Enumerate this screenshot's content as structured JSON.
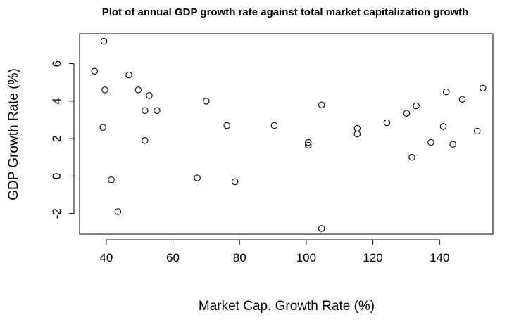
{
  "chart_data": {
    "type": "scatter",
    "title": "Plot of annual GDP growth rate against total market capitalization growth",
    "xlabel": "Market Cap. Growth Rate (%)",
    "ylabel": "GDP Growth Rate (%)",
    "xlim": [
      32,
      156
    ],
    "ylim": [
      -3.1,
      7.6
    ],
    "xticks": [
      40,
      60,
      80,
      100,
      120,
      140
    ],
    "yticks": [
      -2,
      0,
      2,
      4,
      6
    ],
    "grid": false,
    "legend": "none",
    "marker": "open-circle",
    "colors": {
      "points": "#000000",
      "axes": "#000000",
      "background": "#ffffff"
    },
    "points": [
      {
        "x": 36.5,
        "y": 5.6
      },
      {
        "x": 39.3,
        "y": 7.2
      },
      {
        "x": 39.6,
        "y": 4.6
      },
      {
        "x": 39.0,
        "y": 2.6
      },
      {
        "x": 41.5,
        "y": -0.2
      },
      {
        "x": 43.5,
        "y": -1.9
      },
      {
        "x": 46.8,
        "y": 5.4
      },
      {
        "x": 49.6,
        "y": 4.6
      },
      {
        "x": 51.6,
        "y": 3.5
      },
      {
        "x": 51.6,
        "y": 1.9
      },
      {
        "x": 52.9,
        "y": 4.3
      },
      {
        "x": 55.2,
        "y": 3.5
      },
      {
        "x": 67.3,
        "y": -0.1
      },
      {
        "x": 70.0,
        "y": 4.0
      },
      {
        "x": 76.2,
        "y": 2.7
      },
      {
        "x": 78.6,
        "y": -0.3
      },
      {
        "x": 90.4,
        "y": 2.7
      },
      {
        "x": 100.6,
        "y": 1.8
      },
      {
        "x": 100.6,
        "y": 1.65
      },
      {
        "x": 104.6,
        "y": 3.8
      },
      {
        "x": 104.6,
        "y": -2.8
      },
      {
        "x": 115.3,
        "y": 2.55
      },
      {
        "x": 115.3,
        "y": 2.25
      },
      {
        "x": 124.2,
        "y": 2.85
      },
      {
        "x": 130.1,
        "y": 3.35
      },
      {
        "x": 131.7,
        "y": 1.0
      },
      {
        "x": 133.0,
        "y": 3.75
      },
      {
        "x": 137.4,
        "y": 1.8
      },
      {
        "x": 141.1,
        "y": 2.65
      },
      {
        "x": 142.0,
        "y": 4.5
      },
      {
        "x": 144.0,
        "y": 1.7
      },
      {
        "x": 146.8,
        "y": 4.1
      },
      {
        "x": 151.3,
        "y": 2.4
      },
      {
        "x": 153.0,
        "y": 4.7
      }
    ]
  }
}
